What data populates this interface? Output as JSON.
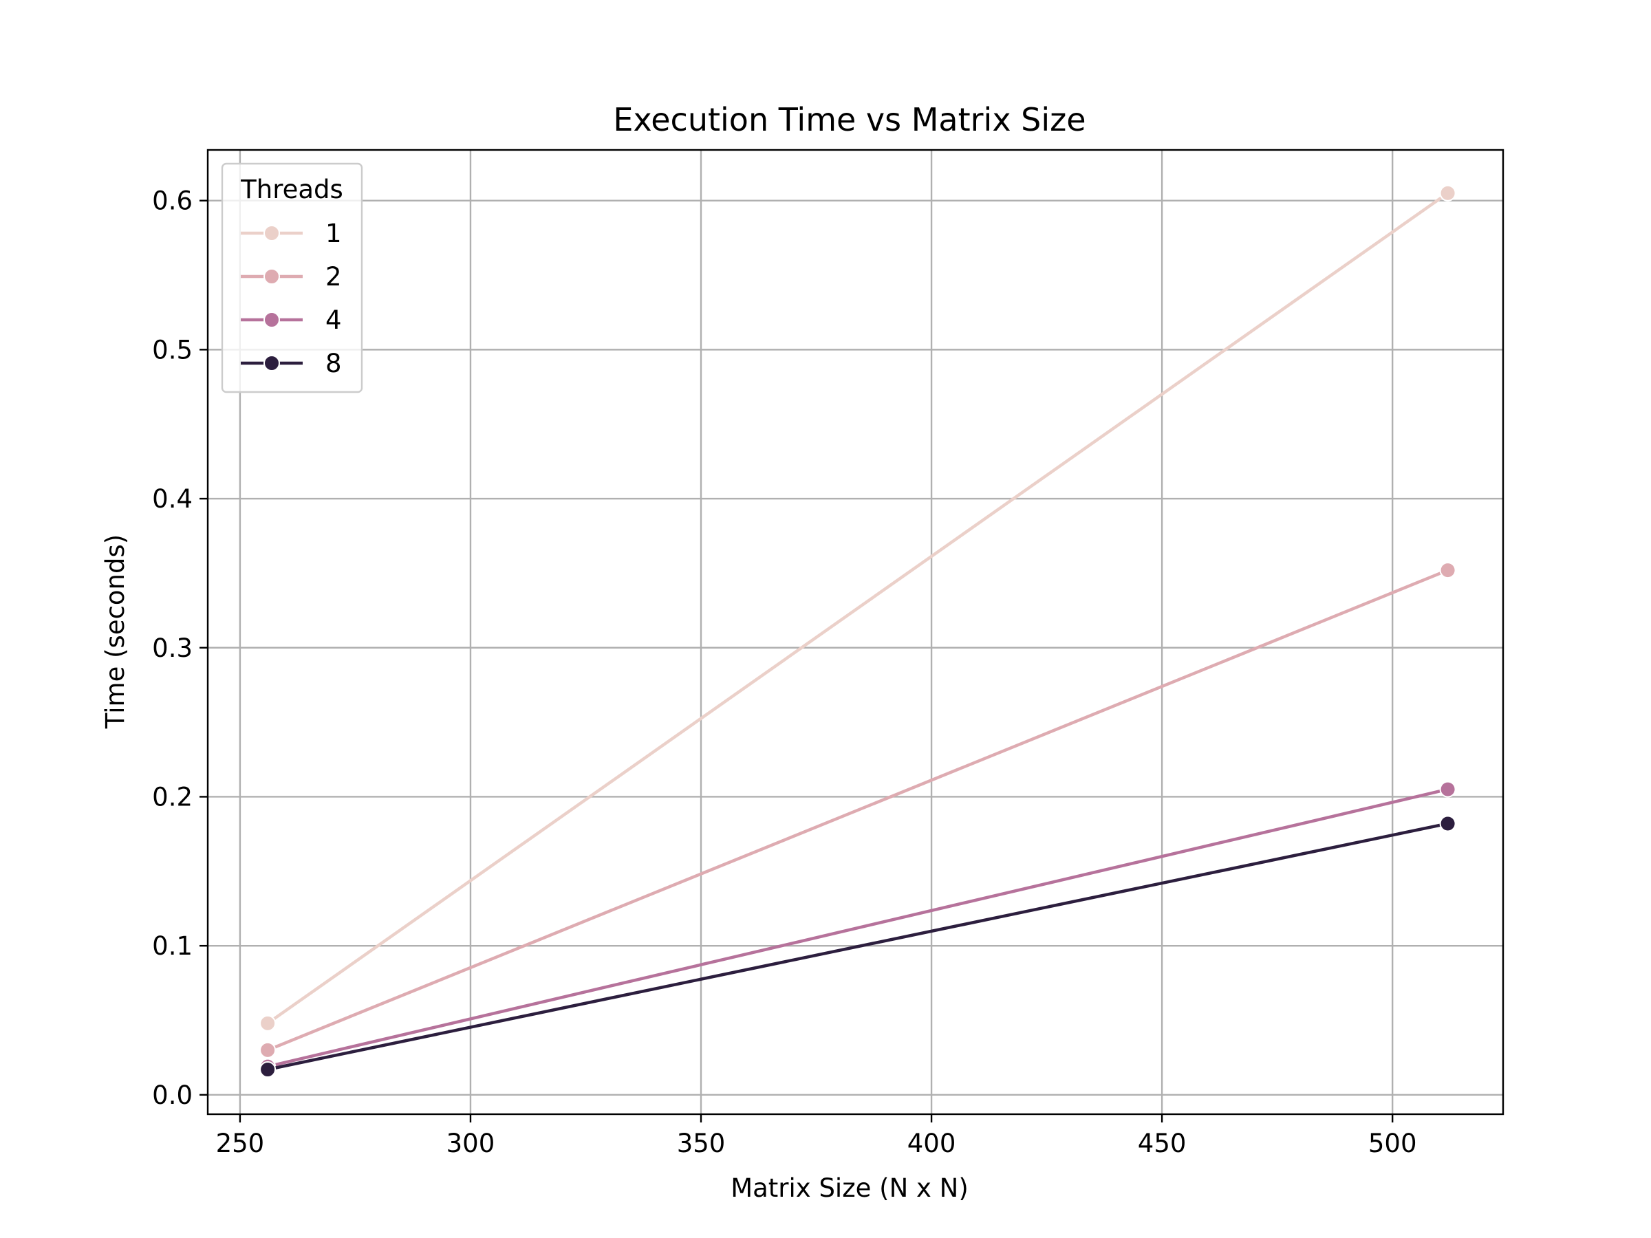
{
  "chart_data": {
    "type": "line",
    "title": "Execution Time vs Matrix Size",
    "xlabel": "Matrix Size (N x N)",
    "ylabel": "Time (seconds)",
    "xlim": [
      243,
      524
    ],
    "ylim": [
      -0.013,
      0.634
    ],
    "xticks": [
      250,
      300,
      350,
      400,
      450,
      500
    ],
    "xtick_labels": [
      "250",
      "300",
      "350",
      "400",
      "450",
      "500"
    ],
    "yticks": [
      0.0,
      0.1,
      0.2,
      0.3,
      0.4,
      0.5,
      0.6
    ],
    "ytick_labels": [
      "0.0",
      "0.1",
      "0.2",
      "0.3",
      "0.4",
      "0.5",
      "0.6"
    ],
    "grid": true,
    "legend": {
      "title": "Threads",
      "position": "top-left"
    },
    "series": [
      {
        "name": "1",
        "color": "#ebd0c9",
        "x": [
          256,
          512
        ],
        "y": [
          0.048,
          0.605
        ]
      },
      {
        "name": "2",
        "color": "#deabb1",
        "x": [
          256,
          512
        ],
        "y": [
          0.03,
          0.352
        ]
      },
      {
        "name": "4",
        "color": "#b6729b",
        "x": [
          256,
          512
        ],
        "y": [
          0.019,
          0.205
        ]
      },
      {
        "name": "8",
        "color": "#2c1e3e",
        "x": [
          256,
          512
        ],
        "y": [
          0.017,
          0.182
        ]
      }
    ]
  }
}
